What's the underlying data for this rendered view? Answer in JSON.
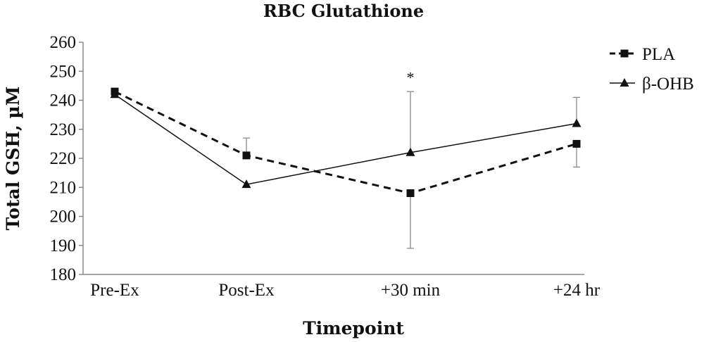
{
  "chart_data": {
    "type": "line",
    "title": "RBC Glutathione",
    "xlabel": "Timepoint",
    "ylabel": "Total GSH, µM",
    "categories": [
      "Pre-Ex",
      "Post-Ex",
      "+30 min",
      "+24 hr"
    ],
    "ylim": [
      180,
      260
    ],
    "yticks": [
      180,
      190,
      200,
      210,
      220,
      230,
      240,
      250,
      260
    ],
    "grid": false,
    "legend_position": "top-right",
    "series": [
      {
        "name": "PLA",
        "values": [
          243,
          221,
          208,
          225
        ],
        "error_upper": [
          null,
          227,
          null,
          null
        ],
        "error_lower": [
          null,
          null,
          189,
          217
        ],
        "marker": "square",
        "line_style": "dashed",
        "color": "#111111"
      },
      {
        "name": "β-OHB",
        "values": [
          242,
          211,
          222,
          232
        ],
        "error_upper": [
          null,
          null,
          243,
          241
        ],
        "error_lower": [
          null,
          null,
          null,
          null
        ],
        "marker": "triangle",
        "line_style": "solid",
        "color": "#111111"
      }
    ],
    "annotations": [
      {
        "text": "*",
        "category": "+30 min",
        "y": 248
      }
    ]
  }
}
